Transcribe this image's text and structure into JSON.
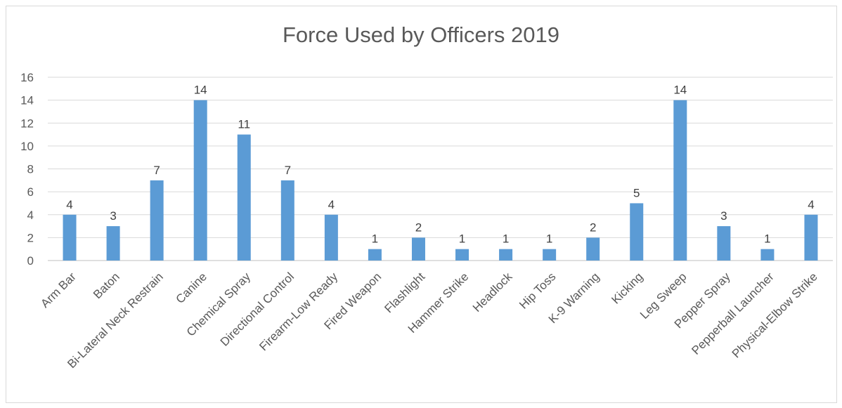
{
  "chart_data": {
    "type": "bar",
    "title": "Force Used by Officers 2019",
    "xlabel": "",
    "ylabel": "",
    "ylim": [
      0,
      16
    ],
    "yticks": [
      0,
      2,
      4,
      6,
      8,
      10,
      12,
      14,
      16
    ],
    "grid": true,
    "legend": "none",
    "bar_color": "#5b9bd5",
    "categories": [
      "Arm Bar",
      "Baton",
      "Bi-Lateral Neck Restrain",
      "Canine",
      "Chemical Spray",
      "Directional Control",
      "Firearm-Low Ready",
      "Fired Weapon",
      "Flashlight",
      "Hammer Strike",
      "Headlock",
      "Hip Toss",
      "K-9 Warning",
      "Kicking",
      "Leg Sweep",
      "Pepper Spray",
      "Pepperball Launcher",
      "Physical-Elbow Strike"
    ],
    "values": [
      4,
      3,
      7,
      14,
      11,
      7,
      4,
      1,
      2,
      1,
      1,
      1,
      2,
      5,
      14,
      3,
      1,
      4
    ]
  }
}
